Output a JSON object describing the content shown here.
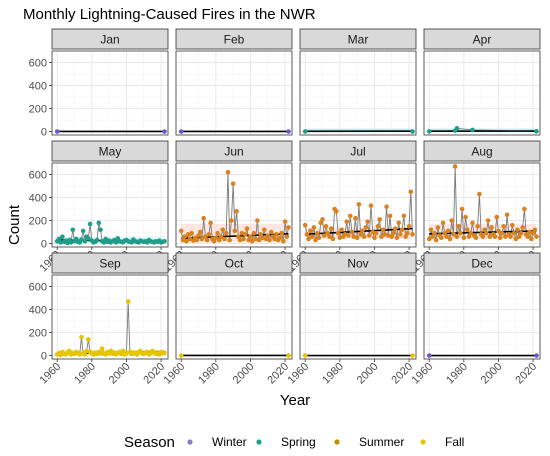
{
  "chart_data": {
    "type": "scatter",
    "title": "Monthly Lightning-Caused Fires in the NWR",
    "xlabel": "Year",
    "ylabel": "Count",
    "xlim": [
      1957,
      2024
    ],
    "ylim": [
      -30,
      700
    ],
    "x_ticks": [
      1960,
      1980,
      2000,
      2020
    ],
    "x_tick_labels": [
      "1960",
      "1980",
      "2000",
      "2020"
    ],
    "y_ticks": [
      0,
      200,
      400,
      600
    ],
    "y_tick_labels": [
      "0",
      "200",
      "400",
      "600"
    ],
    "grid": true,
    "facet_layout": {
      "rows": 3,
      "cols": 4
    },
    "x_tick_label_rows": [
      1,
      2
    ],
    "legend": {
      "title": "Season",
      "position": "bottom",
      "entries": [
        {
          "name": "Winter",
          "color": "#8e7cc3"
        },
        {
          "name": "Spring",
          "color": "#1f9e89"
        },
        {
          "name": "Summer",
          "color": "#c28a00"
        },
        {
          "name": "Fall",
          "color": "#e6c500"
        }
      ]
    },
    "panels": [
      {
        "month": "Jan",
        "season": "Winter",
        "color": "#6a5acd",
        "fill": "#e8e5f5",
        "ribbon": [
          0,
          6
        ],
        "trend": [
          [
            1960,
            1
          ],
          [
            2022,
            1
          ]
        ],
        "years": [
          1960,
          2022
        ],
        "values": [
          0,
          0
        ]
      },
      {
        "month": "Feb",
        "season": "Winter",
        "color": "#6a5acd",
        "fill": "#e8e5f5",
        "ribbon": [
          0,
          6
        ],
        "trend": [
          [
            1960,
            1
          ],
          [
            2022,
            1
          ]
        ],
        "years": [
          1960,
          2022
        ],
        "values": [
          0,
          0
        ]
      },
      {
        "month": "Mar",
        "season": "Spring",
        "color": "#1f9e89",
        "fill": "#a8f0f0",
        "ribbon": [
          -5,
          25
        ],
        "trend": [
          [
            1960,
            2
          ],
          [
            2022,
            3
          ]
        ],
        "years": [
          1960,
          2022
        ],
        "values": [
          0,
          0
        ]
      },
      {
        "month": "Apr",
        "season": "Spring",
        "color": "#1f9e89",
        "fill": "#a8f0f0",
        "ribbon": [
          -5,
          25
        ],
        "trend": [
          [
            1960,
            3
          ],
          [
            2022,
            4
          ]
        ],
        "years": [
          1960,
          1975,
          1976,
          1985,
          2022
        ],
        "values": [
          1,
          8,
          28,
          14,
          2
        ]
      },
      {
        "month": "May",
        "season": "Spring",
        "color": "#1f9e89",
        "fill": "#d9f7f4",
        "ribbon": [
          -5,
          60
        ],
        "trend": [
          [
            1960,
            30
          ],
          [
            2022,
            20
          ]
        ],
        "years": [
          1960,
          1961,
          1962,
          1963,
          1964,
          1965,
          1966,
          1967,
          1968,
          1969,
          1970,
          1971,
          1972,
          1973,
          1974,
          1975,
          1976,
          1977,
          1978,
          1979,
          1980,
          1981,
          1982,
          1983,
          1984,
          1985,
          1986,
          1987,
          1988,
          1989,
          1990,
          1991,
          1992,
          1993,
          1994,
          1995,
          1996,
          1997,
          1998,
          1999,
          2000,
          2001,
          2002,
          2003,
          2004,
          2005,
          2006,
          2007,
          2008,
          2009,
          2010,
          2011,
          2012,
          2013,
          2014,
          2015,
          2016,
          2017,
          2018,
          2019,
          2020,
          2021,
          2022
        ],
        "values": [
          20,
          40,
          10,
          60,
          15,
          25,
          5,
          30,
          10,
          120,
          20,
          40,
          15,
          10,
          35,
          110,
          20,
          60,
          45,
          170,
          25,
          10,
          15,
          30,
          180,
          120,
          20,
          10,
          40,
          15,
          25,
          10,
          20,
          30,
          10,
          45,
          20,
          15,
          10,
          25,
          30,
          20,
          15,
          10,
          35,
          20,
          15,
          10,
          25,
          20,
          15,
          20,
          10,
          30,
          20,
          15,
          10,
          20,
          15,
          25,
          10,
          15,
          20
        ]
      },
      {
        "month": "Jun",
        "season": "Summer",
        "color": "#d9831f",
        "fill": "#fde3df",
        "ribbon": [
          10,
          170
        ],
        "trend": [
          [
            1960,
            45
          ],
          [
            2022,
            85
          ]
        ],
        "years": [
          1960,
          1961,
          1962,
          1963,
          1964,
          1965,
          1966,
          1967,
          1968,
          1969,
          1970,
          1971,
          1972,
          1973,
          1974,
          1975,
          1976,
          1977,
          1978,
          1979,
          1980,
          1981,
          1982,
          1983,
          1984,
          1985,
          1986,
          1987,
          1988,
          1989,
          1990,
          1991,
          1992,
          1993,
          1994,
          1995,
          1996,
          1997,
          1998,
          1999,
          2000,
          2001,
          2002,
          2003,
          2004,
          2005,
          2006,
          2007,
          2008,
          2009,
          2010,
          2011,
          2012,
          2013,
          2014,
          2015,
          2016,
          2017,
          2018,
          2019,
          2020,
          2021,
          2022
        ],
        "values": [
          110,
          30,
          60,
          20,
          80,
          40,
          90,
          25,
          50,
          30,
          70,
          100,
          40,
          220,
          60,
          30,
          80,
          180,
          40,
          20,
          50,
          90,
          30,
          60,
          120,
          40,
          90,
          620,
          30,
          200,
          520,
          110,
          280,
          60,
          30,
          90,
          40,
          80,
          130,
          30,
          60,
          20,
          90,
          40,
          200,
          30,
          80,
          50,
          120,
          40,
          70,
          30,
          100,
          60,
          40,
          80,
          30,
          50,
          90,
          20,
          190,
          60,
          140
        ]
      },
      {
        "month": "Jul",
        "season": "Summer",
        "color": "#d9831f",
        "fill": "#fde3df",
        "ribbon": [
          40,
          140
        ],
        "trend": [
          [
            1960,
            80
          ],
          [
            2022,
            130
          ]
        ],
        "years": [
          1960,
          1961,
          1962,
          1963,
          1964,
          1965,
          1966,
          1967,
          1968,
          1969,
          1970,
          1971,
          1972,
          1973,
          1974,
          1975,
          1976,
          1977,
          1978,
          1979,
          1980,
          1981,
          1982,
          1983,
          1984,
          1985,
          1986,
          1987,
          1988,
          1989,
          1990,
          1991,
          1992,
          1993,
          1994,
          1995,
          1996,
          1997,
          1998,
          1999,
          2000,
          2001,
          2002,
          2003,
          2004,
          2005,
          2006,
          2007,
          2008,
          2009,
          2010,
          2011,
          2012,
          2013,
          2014,
          2015,
          2016,
          2017,
          2018,
          2019,
          2020,
          2021,
          2022
        ],
        "values": [
          160,
          80,
          40,
          110,
          60,
          140,
          30,
          90,
          50,
          180,
          210,
          70,
          150,
          90,
          60,
          130,
          40,
          300,
          280,
          90,
          50,
          120,
          60,
          80,
          190,
          70,
          240,
          100,
          60,
          220,
          50,
          340,
          80,
          110,
          60,
          140,
          190,
          70,
          330,
          100,
          50,
          90,
          150,
          210,
          60,
          120,
          80,
          320,
          70,
          240,
          60,
          90,
          130,
          50,
          180,
          80,
          120,
          240,
          60,
          90,
          150,
          450,
          80
        ]
      },
      {
        "month": "Aug",
        "season": "Summer",
        "color": "#d9831f",
        "fill": "#fde3df",
        "ribbon": [
          40,
          170
        ],
        "trend": [
          [
            1960,
            85
          ],
          [
            2022,
            110
          ]
        ],
        "years": [
          1960,
          1961,
          1962,
          1963,
          1964,
          1965,
          1966,
          1967,
          1968,
          1969,
          1970,
          1971,
          1972,
          1973,
          1974,
          1975,
          1976,
          1977,
          1978,
          1979,
          1980,
          1981,
          1982,
          1983,
          1984,
          1985,
          1986,
          1987,
          1988,
          1989,
          1990,
          1991,
          1992,
          1993,
          1994,
          1995,
          1996,
          1997,
          1998,
          1999,
          2000,
          2001,
          2002,
          2003,
          2004,
          2005,
          2006,
          2007,
          2008,
          2009,
          2010,
          2011,
          2012,
          2013,
          2014,
          2015,
          2016,
          2017,
          2018,
          2019,
          2020,
          2021,
          2022
        ],
        "values": [
          40,
          120,
          60,
          90,
          30,
          140,
          70,
          50,
          180,
          90,
          60,
          110,
          40,
          200,
          80,
          670,
          60,
          150,
          90,
          300,
          50,
          230,
          120,
          60,
          90,
          180,
          70,
          50,
          150,
          430,
          80,
          60,
          120,
          90,
          200,
          60,
          140,
          80,
          60,
          230,
          110,
          50,
          90,
          150,
          60,
          250,
          80,
          60,
          160,
          90,
          40,
          120,
          60,
          90,
          140,
          300,
          80,
          60,
          100,
          40,
          90,
          120,
          60
        ]
      },
      {
        "month": "Sep",
        "season": "Fall",
        "color": "#e6c500",
        "fill": "#fbf3b0",
        "ribbon": [
          5,
          50
        ],
        "trend": [
          [
            1960,
            15
          ],
          [
            2022,
            35
          ]
        ],
        "years": [
          1960,
          1961,
          1962,
          1963,
          1964,
          1965,
          1966,
          1967,
          1968,
          1969,
          1970,
          1971,
          1972,
          1973,
          1974,
          1975,
          1976,
          1977,
          1978,
          1979,
          1980,
          1981,
          1982,
          1983,
          1984,
          1985,
          1986,
          1987,
          1988,
          1989,
          1990,
          1991,
          1992,
          1993,
          1994,
          1995,
          1996,
          1997,
          1998,
          1999,
          2000,
          2001,
          2002,
          2003,
          2004,
          2005,
          2006,
          2007,
          2008,
          2009,
          2010,
          2011,
          2012,
          2013,
          2014,
          2015,
          2016,
          2017,
          2018,
          2019,
          2020,
          2021,
          2022
        ],
        "values": [
          10,
          20,
          5,
          30,
          15,
          10,
          25,
          40,
          10,
          20,
          15,
          30,
          20,
          10,
          160,
          20,
          10,
          40,
          140,
          30,
          20,
          10,
          25,
          15,
          30,
          20,
          60,
          15,
          10,
          30,
          20,
          40,
          15,
          25,
          10,
          20,
          30,
          15,
          40,
          10,
          20,
          470,
          30,
          15,
          25,
          20,
          10,
          30,
          40,
          20,
          15,
          25,
          30,
          10,
          20,
          40,
          30,
          15,
          20,
          10,
          30,
          20,
          25
        ]
      },
      {
        "month": "Oct",
        "season": "Fall",
        "color": "#e6c500",
        "fill": "#fbf3b0",
        "ribbon": [
          -3,
          6
        ],
        "trend": [
          [
            1960,
            1
          ],
          [
            2022,
            1
          ]
        ],
        "years": [
          1960,
          2022
        ],
        "values": [
          0,
          0
        ]
      },
      {
        "month": "Nov",
        "season": "Fall",
        "color": "#e6c500",
        "fill": "#fbf3b0",
        "ribbon": [
          -3,
          6
        ],
        "trend": [
          [
            1960,
            0
          ],
          [
            2022,
            0
          ]
        ],
        "years": [
          1960,
          2022
        ],
        "values": [
          0,
          0
        ]
      },
      {
        "month": "Dec",
        "season": "Winter",
        "color": "#6a5acd",
        "fill": "#e8e5f5",
        "ribbon": [
          -3,
          6
        ],
        "trend": [
          [
            1960,
            0
          ],
          [
            2022,
            0
          ]
        ],
        "years": [
          1960,
          2022
        ],
        "values": [
          0,
          0
        ]
      }
    ]
  }
}
